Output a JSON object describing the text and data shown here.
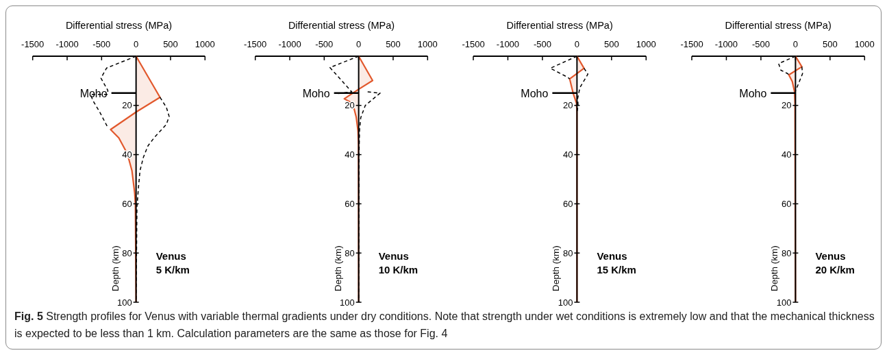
{
  "chart_data": [
    {
      "type": "line",
      "xlabel": "Differential stress (MPa)",
      "ylabel": "Depth (km)",
      "xlim": [
        -1500,
        1000
      ],
      "xticks": [
        -1500,
        -1000,
        -500,
        0,
        500,
        1000
      ],
      "ylim": [
        100,
        0
      ],
      "yticks": [
        20,
        40,
        60,
        80,
        100
      ],
      "series": [
        {
          "type": "area",
          "color": "#e2582c",
          "x": [
            0,
            347,
            0,
            -370,
            -250,
            -127,
            -60,
            -20,
            -10,
            0
          ],
          "values": [
            0,
            16.7,
            22.7,
            29.8,
            33.2,
            39.6,
            46.5,
            55.7,
            60,
            100
          ]
        },
        {
          "type": "line",
          "line_style": "dashed",
          "color": "#000000",
          "x": [
            0,
            -427,
            -510,
            -410,
            -410,
            -660,
            -627,
            -527,
            -410,
            null,
            347,
            440,
            480,
            440,
            273,
            173,
            107,
            57,
            33,
            13,
            10,
            5,
            0
          ],
          "values": [
            0,
            4.8,
            8.9,
            13.9,
            15.5,
            15.5,
            18,
            22.7,
            29,
            null,
            16.7,
            20.8,
            24.5,
            27.7,
            32.8,
            36.4,
            41,
            46.5,
            53.9,
            61.2,
            70,
            85,
            100
          ]
        }
      ],
      "ref_lines": [
        {
          "axis": "y",
          "value": 15,
          "label": "Moho"
        }
      ],
      "annotations": [
        "Venus\n5 K/km"
      ]
    },
    {
      "type": "line",
      "xlabel": "Differential stress (MPa)",
      "ylabel": "Depth (km)",
      "xlim": [
        -1500,
        1000
      ],
      "xticks": [
        -1500,
        -1000,
        -500,
        0,
        500,
        1000
      ],
      "ylim": [
        100,
        0
      ],
      "yticks": [
        20,
        40,
        60,
        80,
        100
      ],
      "series": [
        {
          "type": "area",
          "color": "#e2582c",
          "x": [
            0,
            202,
            -10,
            -209,
            -86,
            -36,
            -10,
            -3,
            0
          ],
          "values": [
            0,
            9.9,
            13.6,
            17.3,
            19.2,
            24.7,
            30.3,
            36,
            100
          ]
        },
        {
          "type": "line",
          "line_style": "dashed",
          "color": "#000000",
          "x": [
            0,
            -417,
            -100,
            -300,
            null,
            130,
            311,
            96,
            30,
            13,
            5,
            0
          ],
          "values": [
            0,
            4.6,
            14.5,
            15.2,
            null,
            14.5,
            15,
            20,
            25,
            30,
            40,
            100
          ]
        }
      ],
      "ref_lines": [
        {
          "axis": "y",
          "value": 15,
          "label": "Moho"
        }
      ],
      "annotations": [
        "Venus\n10 K/km"
      ]
    },
    {
      "type": "line",
      "xlabel": "Differential stress (MPa)",
      "ylabel": "Depth (km)",
      "xlim": [
        -1500,
        1000
      ],
      "xticks": [
        -1500,
        -1000,
        -500,
        0,
        500,
        1000
      ],
      "ylim": [
        100,
        0
      ],
      "yticks": [
        20,
        40,
        60,
        80,
        100
      ],
      "series": [
        {
          "type": "area",
          "color": "#e2582c",
          "x": [
            0,
            102,
            -106,
            -56,
            -7,
            0,
            0
          ],
          "values": [
            0,
            4.9,
            9.2,
            15,
            19.1,
            22.8,
            100
          ]
        },
        {
          "type": "line",
          "line_style": "dashed",
          "color": "#000000",
          "x": [
            0,
            -386,
            -139,
            -106,
            null,
            102,
            158,
            43,
            10,
            16,
            0
          ],
          "values": [
            0,
            4.9,
            8.5,
            9.2,
            null,
            4.9,
            7.3,
            12.7,
            17.2,
            20,
            23
          ]
        }
      ],
      "ref_lines": [
        {
          "axis": "y",
          "value": 15,
          "label": "Moho"
        }
      ],
      "annotations": [
        "Venus\n15 K/km"
      ]
    },
    {
      "type": "line",
      "xlabel": "Differential stress (MPa)",
      "ylabel": "Depth (km)",
      "xlim": [
        -1500,
        1000
      ],
      "xticks": [
        -1500,
        -1000,
        -500,
        0,
        500,
        1000
      ],
      "ylim": [
        100,
        0
      ],
      "yticks": [
        20,
        40,
        60,
        80,
        100
      ],
      "series": [
        {
          "type": "area",
          "color": "#e2582c",
          "x": [
            0,
            92,
            -96,
            -46,
            -13,
            -7,
            0
          ],
          "values": [
            0,
            4.3,
            7.6,
            10.3,
            14.5,
            19.5,
            100
          ]
        },
        {
          "type": "line",
          "line_style": "dashed",
          "color": "#000000",
          "x": [
            0,
            -244,
            -211,
            -112,
            -96,
            null,
            92,
            102,
            36,
            3
          ],
          "values": [
            0,
            3,
            5.7,
            7.1,
            7.6,
            null,
            4.3,
            7.1,
            11.7,
            14
          ]
        }
      ],
      "ref_lines": [
        {
          "axis": "y",
          "value": 15,
          "label": "Moho"
        }
      ],
      "annotations": [
        "Venus\n20 K/km"
      ]
    },
    {
      "type": "other",
      "annotations": [
        "Fig. 5",
        "Strength profiles for Venus with variable thermal gradients under dry conditions. Note that strength under wet conditions is extremely low and that the mechanical thickness is expected to be less than 1 km. Calculation parameters are the same as those for Fig. 4"
      ]
    }
  ]
}
